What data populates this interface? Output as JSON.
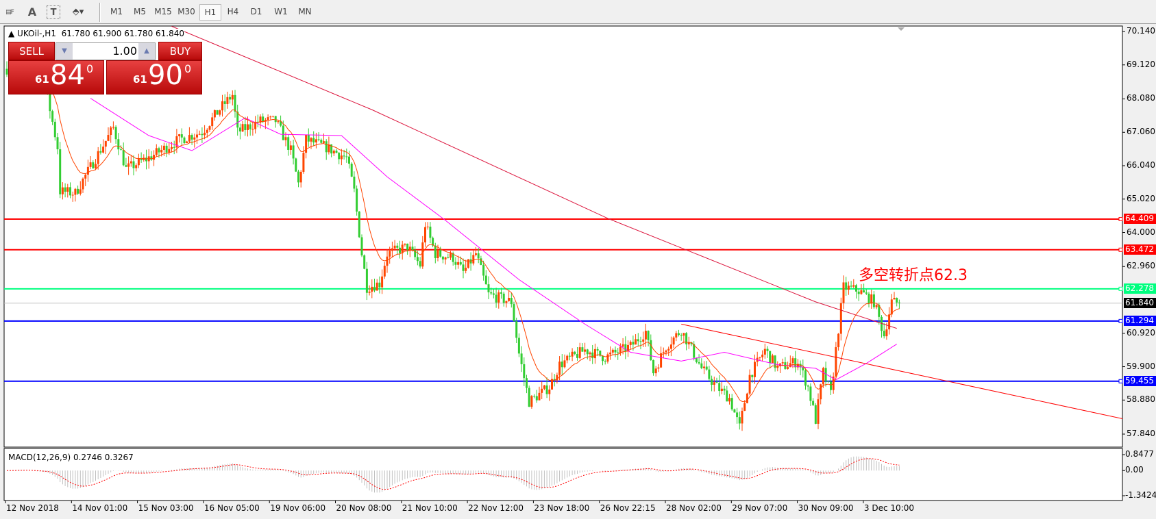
{
  "toolbar": {
    "tools": [
      "text-label-tool",
      "text-tool",
      "text-box-tool",
      "arrows-tool"
    ],
    "text_tool": "A",
    "timeframes": [
      "M1",
      "M5",
      "M15",
      "M30",
      "H1",
      "H4",
      "D1",
      "W1",
      "MN"
    ],
    "selected": "H1"
  },
  "header": {
    "symbol": "UKOil-,H1",
    "ohlc": "61.780 61.900 61.780 61.840"
  },
  "trade_panel": {
    "sell_label": "SELL",
    "buy_label": "BUY",
    "lot": "1.00",
    "sell_big": "84",
    "sell_small": "61",
    "sell_sup": "0",
    "buy_big": "90",
    "buy_small": "61",
    "buy_sup": "0"
  },
  "annotation": "多空转折点62.3",
  "macd_label": "MACD(12,26,9) 0.2746 0.3267",
  "chart_data": {
    "type": "candlestick",
    "symbol": "UKOil",
    "timeframe": "H1",
    "price_axis": {
      "ticks": [
        "70.140",
        "69.120",
        "68.080",
        "67.060",
        "66.040",
        "65.020",
        "64.000",
        "62.960",
        "60.920",
        "59.900",
        "58.880",
        "57.840"
      ],
      "range": [
        57.84,
        70.14
      ]
    },
    "time_axis": [
      "12 Nov 2018",
      "14 Nov 01:00",
      "15 Nov 03:00",
      "16 Nov 05:00",
      "19 Nov 06:00",
      "20 Nov 08:00",
      "21 Nov 10:00",
      "22 Nov 12:00",
      "23 Nov 18:00",
      "26 Nov 22:15",
      "28 Nov 02:00",
      "29 Nov 07:00",
      "30 Nov 09:00",
      "3 Dec 10:00"
    ],
    "price_path": [
      [
        0,
        69.0
      ],
      [
        15,
        68.54
      ],
      [
        20,
        66.6
      ],
      [
        21,
        65.26
      ],
      [
        27,
        65.2
      ],
      [
        36,
        66.4
      ],
      [
        42,
        67.2
      ],
      [
        47,
        65.94
      ],
      [
        56,
        66.28
      ],
      [
        68,
        66.84
      ],
      [
        77,
        67.07
      ],
      [
        85,
        67.86
      ],
      [
        89,
        68.2
      ],
      [
        91,
        67.07
      ],
      [
        100,
        67.41
      ],
      [
        106,
        67.41
      ],
      [
        112,
        66.5
      ],
      [
        115,
        65.49
      ],
      [
        118,
        66.84
      ],
      [
        126,
        66.6
      ],
      [
        134,
        66.28
      ],
      [
        137,
        65.26
      ],
      [
        140,
        63.35
      ],
      [
        142,
        62.33
      ],
      [
        147,
        62.44
      ],
      [
        150,
        63.35
      ],
      [
        158,
        63.57
      ],
      [
        163,
        63.0
      ],
      [
        165,
        64.25
      ],
      [
        169,
        63.35
      ],
      [
        176,
        63.23
      ],
      [
        180,
        62.78
      ],
      [
        185,
        63.35
      ],
      [
        190,
        62.1
      ],
      [
        199,
        61.88
      ],
      [
        202,
        60.3
      ],
      [
        206,
        58.83
      ],
      [
        214,
        59.28
      ],
      [
        218,
        59.96
      ],
      [
        228,
        60.41
      ],
      [
        236,
        60.19
      ],
      [
        246,
        60.52
      ],
      [
        252,
        60.98
      ],
      [
        255,
        59.73
      ],
      [
        260,
        60.52
      ],
      [
        266,
        61.02
      ],
      [
        274,
        59.85
      ],
      [
        280,
        59.28
      ],
      [
        285,
        58.94
      ],
      [
        289,
        58.04
      ],
      [
        293,
        59.62
      ],
      [
        299,
        60.41
      ],
      [
        304,
        59.85
      ],
      [
        312,
        60.07
      ],
      [
        316,
        59.28
      ],
      [
        319,
        58.27
      ],
      [
        322,
        59.73
      ],
      [
        325,
        59.06
      ],
      [
        327,
        60.41
      ],
      [
        330,
        62.33
      ],
      [
        336,
        62.22
      ],
      [
        342,
        61.88
      ],
      [
        346,
        60.86
      ],
      [
        349,
        61.88
      ],
      [
        352,
        61.84
      ]
    ],
    "slow_ma": [
      [
        65,
        70.3
      ],
      [
        144,
        67.75
      ],
      [
        237,
        64.43
      ],
      [
        319,
        61.88
      ],
      [
        351,
        61.07
      ]
    ],
    "mid_ma": [
      [
        33,
        68.1
      ],
      [
        56,
        66.96
      ],
      [
        73,
        66.5
      ],
      [
        94,
        67.5
      ],
      [
        108,
        67.0
      ],
      [
        132,
        66.96
      ],
      [
        150,
        65.7
      ],
      [
        173,
        64.37
      ],
      [
        202,
        62.56
      ],
      [
        228,
        61.2
      ],
      [
        246,
        60.34
      ],
      [
        266,
        60.07
      ],
      [
        283,
        60.34
      ],
      [
        304,
        59.96
      ],
      [
        319,
        59.85
      ],
      [
        327,
        59.5
      ],
      [
        339,
        60.0
      ],
      [
        351,
        60.59
      ]
    ],
    "trendline": [
      [
        266,
        61.2
      ],
      [
        440,
        58.31
      ]
    ],
    "hlines": [
      {
        "price": "64.409",
        "color": "#ff0000"
      },
      {
        "price": "63.472",
        "color": "#ff0000"
      },
      {
        "price": "62.278",
        "color": "#00ff7f"
      },
      {
        "price": "61.294",
        "color": "#0000ff"
      },
      {
        "price": "59.455",
        "color": "#0000ff"
      }
    ],
    "bid": {
      "price": "61.840",
      "color": "#000000"
    },
    "macd_axis": [
      "0.8477",
      "0.00",
      "-1.3424"
    ],
    "macd_range": [
      -1.3424,
      0.8477
    ],
    "colors": {
      "bull": "#ff4500",
      "bear": "#32cd32",
      "slow_ma": "#dc143c",
      "mid_ma": "#ff00ff",
      "fast_ma": "#ff4500",
      "trend": "#ff0000",
      "macd_hist": "#c0c0c0",
      "macd_signal": "#ff0000"
    }
  }
}
